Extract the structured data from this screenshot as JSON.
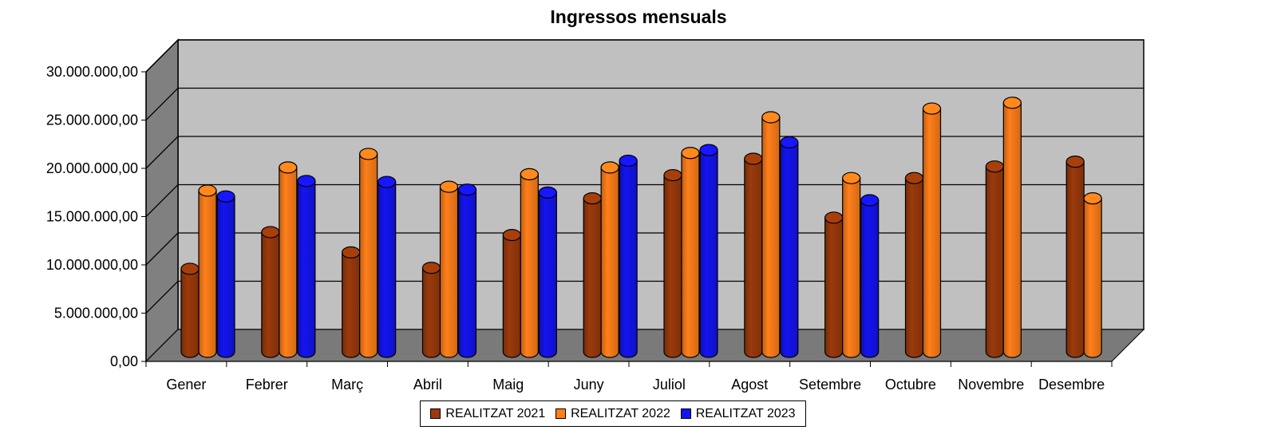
{
  "chart_data": {
    "type": "bar",
    "title": "Ingressos mensuals",
    "categories": [
      "Gener",
      "Febrer",
      "Març",
      "Abril",
      "Maig",
      "Juny",
      "Juliol",
      "Agost",
      "Setembre",
      "Octubre",
      "Novembre",
      "Desembre"
    ],
    "series": [
      {
        "name": "REALITZAT 2021",
        "color": "#9B3A0C",
        "values": [
          8600000,
          12400000,
          10300000,
          8700000,
          12100000,
          15900000,
          18300000,
          20000000,
          13900000,
          18000000,
          19200000,
          19700000
        ]
      },
      {
        "name": "REALITZAT 2022",
        "color": "#FF7F1A",
        "values": [
          16700000,
          19100000,
          20500000,
          17100000,
          18400000,
          19100000,
          20600000,
          24300000,
          18000000,
          25200000,
          25800000,
          15900000
        ]
      },
      {
        "name": "REALITZAT 2023",
        "color": "#1414F0",
        "values": [
          16100000,
          17700000,
          17600000,
          16800000,
          16500000,
          19800000,
          20900000,
          21700000,
          15700000,
          null,
          null,
          null
        ]
      }
    ],
    "ylim": [
      0,
      30000000
    ],
    "yticks": [
      0,
      5000000,
      10000000,
      15000000,
      20000000,
      25000000,
      30000000
    ],
    "ytick_labels": [
      "0,00",
      "5.000.000,00",
      "10.000.000,00",
      "15.000.000,00",
      "20.000.000,00",
      "25.000.000,00",
      "30.000.000,00"
    ],
    "xlabel": "",
    "ylabel": "",
    "legend_position": "bottom"
  }
}
